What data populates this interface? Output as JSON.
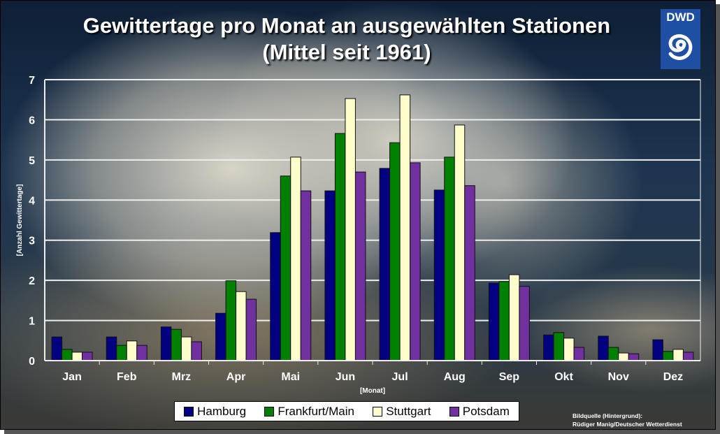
{
  "chart_data": {
    "type": "bar",
    "title": "Gewittertage pro Monat an ausgewählten Stationen",
    "subtitle": "(Mittel seit 1961)",
    "xlabel": "[Monat]",
    "ylabel": "[Anzahl Gewittertage]",
    "ylim": [
      0,
      7
    ],
    "yticks": [
      "0",
      "1",
      "2",
      "3",
      "4",
      "5",
      "6",
      "7"
    ],
    "grid": true,
    "legend_position": "bottom",
    "categories": [
      "Jan",
      "Feb",
      "Mrz",
      "Apr",
      "Mai",
      "Jun",
      "Jul",
      "Aug",
      "Sep",
      "Okt",
      "Nov",
      "Dez"
    ],
    "series": [
      {
        "name": "Hamburg",
        "color": "#000080",
        "values": [
          0.59,
          0.59,
          0.84,
          1.18,
          3.19,
          4.23,
          4.79,
          4.25,
          1.93,
          0.64,
          0.61,
          0.52
        ]
      },
      {
        "name": "Frankfurt/Main",
        "color": "#008000",
        "values": [
          0.28,
          0.38,
          0.78,
          1.99,
          4.6,
          5.66,
          5.43,
          5.07,
          1.97,
          0.7,
          0.33,
          0.23
        ]
      },
      {
        "name": "Stuttgart",
        "color": "#ffffcc",
        "values": [
          0.21,
          0.49,
          0.59,
          1.72,
          5.07,
          6.53,
          6.62,
          5.87,
          2.14,
          0.56,
          0.19,
          0.28
        ]
      },
      {
        "name": "Potsdam",
        "color": "#7030a0",
        "values": [
          0.21,
          0.38,
          0.47,
          1.53,
          4.23,
          4.7,
          4.93,
          4.36,
          1.85,
          0.33,
          0.17,
          0.21
        ]
      }
    ]
  },
  "logo": {
    "text": "DWD"
  },
  "credit": {
    "line1": "Bildquelle (Hintergrund):",
    "line2": "Rüdiger Manig/Deutscher Wetterdienst"
  }
}
